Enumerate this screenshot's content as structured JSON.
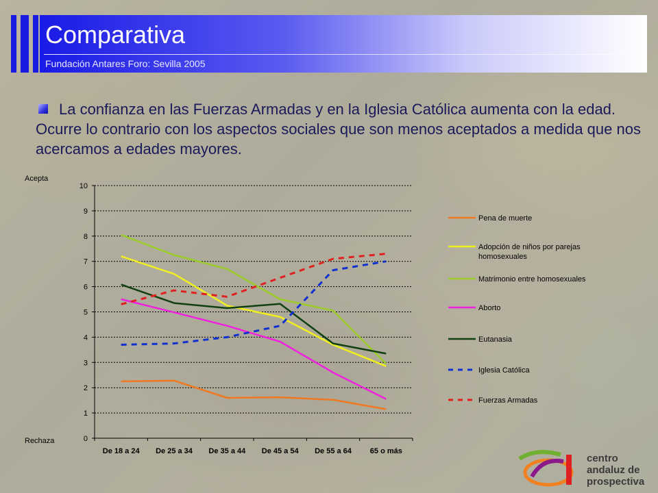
{
  "header": {
    "title": "Comparativa",
    "subtitle": "Fundación Antares Foro: Sevilla 2005"
  },
  "paragraph": "La confianza en las Fuerzas Armadas y en la Iglesia Católica aumenta con la edad. Ocurre lo contrario con los aspectos sociales que son menos aceptados a medida que nos acercamos a edades mayores.",
  "chart_data": {
    "type": "line",
    "top_label": "Acepta",
    "bottom_label": "Rechaza",
    "ylim": [
      0,
      10
    ],
    "yticks": [
      "0",
      "1",
      "2",
      "3",
      "4",
      "5",
      "6",
      "7",
      "8",
      "9",
      "10"
    ],
    "grid": "horizontal dotted",
    "legend_position": "right",
    "categories": [
      "De 18 a 24",
      "De 25 a 34",
      "De 35 a 44",
      "De 45 a 54",
      "De 55 a 64",
      "65 o más"
    ],
    "series": [
      {
        "name": "Pena de muerte",
        "color": "#f07820",
        "dash": "solid",
        "values": [
          2.25,
          2.28,
          1.6,
          1.62,
          1.52,
          1.15
        ]
      },
      {
        "name": "Adopción de niños por parejas homosexuales",
        "name_lines": [
          "Adopción de niños por parejas",
          "homosexuales"
        ],
        "color": "#f0f020",
        "dash": "solid",
        "values": [
          7.2,
          6.5,
          5.25,
          4.8,
          3.7,
          2.85
        ]
      },
      {
        "name": "Matrimonio entre homosexuales",
        "color": "#9ccc28",
        "dash": "solid",
        "values": [
          8.05,
          7.25,
          6.7,
          5.5,
          5.05,
          2.95
        ]
      },
      {
        "name": "Aborto",
        "color": "#f020e0",
        "dash": "solid",
        "values": [
          5.5,
          4.98,
          4.45,
          3.82,
          2.6,
          1.55
        ]
      },
      {
        "name": "Eutanasia",
        "color": "#104010",
        "dash": "solid",
        "values": [
          6.08,
          5.35,
          5.15,
          5.32,
          3.75,
          3.35
        ]
      },
      {
        "name": "Iglesia Católica",
        "color": "#1030d0",
        "dash": "dashed",
        "values": [
          3.7,
          3.75,
          4.0,
          4.45,
          6.65,
          7.0
        ]
      },
      {
        "name": "Fuerzas Armadas",
        "color": "#e02020",
        "dash": "dashed",
        "values": [
          5.3,
          5.85,
          5.6,
          6.35,
          7.1,
          7.3
        ]
      }
    ]
  },
  "logo": {
    "lines": [
      "centro",
      "andaluz de",
      "prospectiva"
    ],
    "colors": {
      "orange": "#f08020",
      "purple": "#8a1a8a",
      "green": "#70b030",
      "red": "#e02020"
    }
  }
}
